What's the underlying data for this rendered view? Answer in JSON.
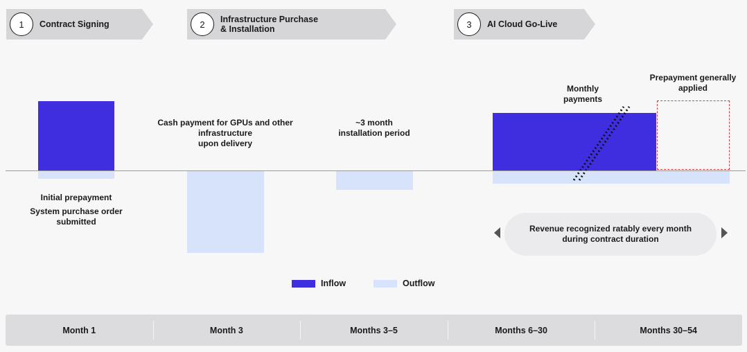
{
  "steps": [
    {
      "number": "1",
      "label": "Contract Signing"
    },
    {
      "number": "2",
      "label": "Infrastructure Purchase\n& Installation"
    },
    {
      "number": "3",
      "label": "AI Cloud Go-Live"
    }
  ],
  "annotations": {
    "initial_prepayment": "Initial prepayment",
    "po_submitted": "System purchase order\nsubmitted",
    "cash_payment": "Cash payment for GPUs and other\ninfrastructure\nupon delivery",
    "installation": "~3 month\ninstallation period",
    "monthly_payments": "Monthly\npayments",
    "prepayment_applied": "Prepayment generally\napplied",
    "revenue_recognized": "Revenue recognized ratably every month\nduring contract duration"
  },
  "legend": {
    "inflow": "Inflow",
    "outflow": "Outflow"
  },
  "colors": {
    "inflow": "#3f2de0",
    "outflow": "#d7e2fb",
    "step_bg": "#d6d6d9",
    "dashed_border": "#e0393e"
  },
  "timeline": [
    "Month 1",
    "Month 3",
    "Months 3–5",
    "Months 6–30",
    "Months 30–54"
  ]
}
